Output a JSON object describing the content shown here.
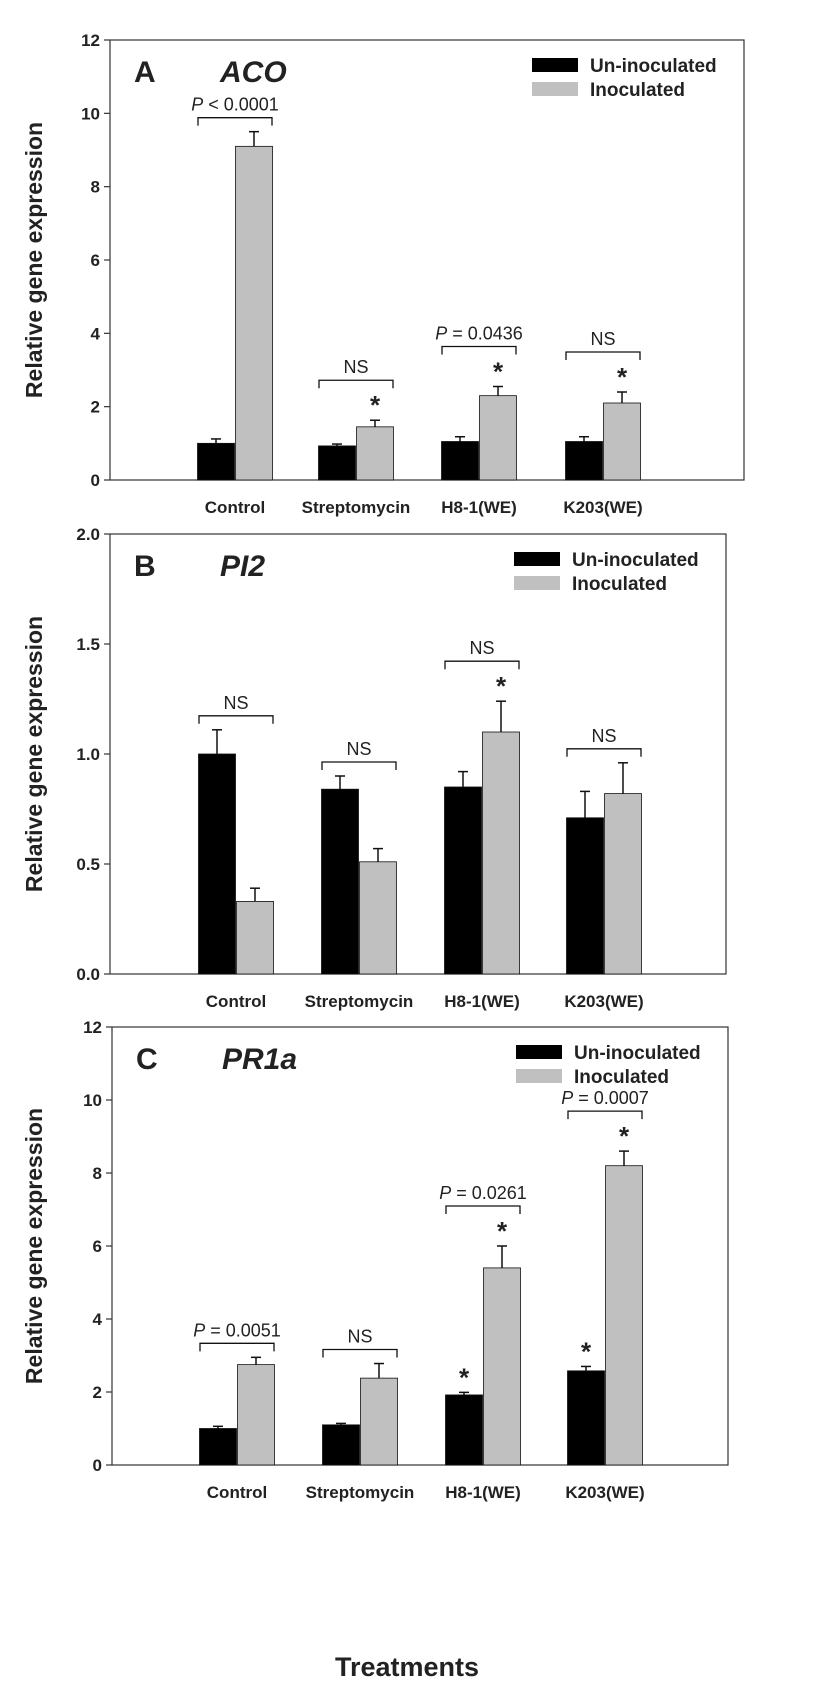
{
  "figure": {
    "xlabel": "Treatments"
  },
  "colors": {
    "uninoculated": "#000000",
    "inoculated": "#c0c0c0",
    "axis": "#333333"
  },
  "chart_data": [
    {
      "type": "bar",
      "panel_label": "A",
      "title": "ACO",
      "ylabel": "Relative gene expression",
      "ylim": [
        0,
        12
      ],
      "yticks": [
        "0",
        "2",
        "4",
        "6",
        "8",
        "10",
        "12"
      ],
      "categories": [
        "Control",
        "Streptomycin",
        "H8-1(WE)",
        "K203(WE)"
      ],
      "series": [
        {
          "name": "Un-inoculated",
          "values": [
            1.0,
            0.93,
            1.05,
            1.05
          ],
          "errors": [
            0.12,
            0.05,
            0.13,
            0.13
          ],
          "stars": [
            false,
            false,
            false,
            false
          ]
        },
        {
          "name": "Inoculated",
          "values": [
            9.1,
            1.45,
            2.3,
            2.1
          ],
          "errors": [
            0.4,
            0.18,
            0.25,
            0.3
          ],
          "stars": [
            false,
            true,
            true,
            true
          ]
        }
      ],
      "comparisons": [
        {
          "label_prefix": "P",
          "label": " < 0.0001"
        },
        {
          "label_prefix": "",
          "label": "NS"
        },
        {
          "label_prefix": "P",
          "label": " = 0.0436"
        },
        {
          "label_prefix": "",
          "label": "NS"
        }
      ],
      "legend_position": "top-right"
    },
    {
      "type": "bar",
      "panel_label": "B",
      "title": "PI2",
      "ylabel": "Relative gene expression",
      "ylim": [
        0,
        2
      ],
      "yticks": [
        "0.0",
        "0.5",
        "1.0",
        "1.5",
        "2.0"
      ],
      "categories": [
        "Control",
        "Streptomycin",
        "H8-1(WE)",
        "K203(WE)"
      ],
      "series": [
        {
          "name": "Un-inoculated",
          "values": [
            1.0,
            0.84,
            0.85,
            0.71
          ],
          "errors": [
            0.11,
            0.06,
            0.07,
            0.12
          ],
          "stars": [
            false,
            false,
            false,
            false
          ]
        },
        {
          "name": "Inoculated",
          "values": [
            0.33,
            0.51,
            1.1,
            0.82
          ],
          "errors": [
            0.06,
            0.06,
            0.14,
            0.14
          ],
          "stars": [
            false,
            false,
            true,
            false
          ]
        }
      ],
      "comparisons": [
        {
          "label_prefix": "",
          "label": "NS"
        },
        {
          "label_prefix": "",
          "label": "NS"
        },
        {
          "label_prefix": "",
          "label": "NS"
        },
        {
          "label_prefix": "",
          "label": "NS"
        }
      ],
      "legend_position": "top-right"
    },
    {
      "type": "bar",
      "panel_label": "C",
      "title": "PR1a",
      "ylabel": "Relative gene expression",
      "ylim": [
        0,
        12
      ],
      "yticks": [
        "0",
        "2",
        "4",
        "6",
        "8",
        "10",
        "12"
      ],
      "categories": [
        "Control",
        "Streptomycin",
        "H8-1(WE)",
        "K203(WE)"
      ],
      "series": [
        {
          "name": "Un-inoculated",
          "values": [
            1.0,
            1.1,
            1.92,
            2.58
          ],
          "errors": [
            0.06,
            0.04,
            0.07,
            0.12
          ],
          "stars": [
            false,
            false,
            true,
            true
          ]
        },
        {
          "name": "Inoculated",
          "values": [
            2.75,
            2.38,
            5.4,
            8.2
          ],
          "errors": [
            0.2,
            0.4,
            0.6,
            0.4
          ],
          "stars": [
            false,
            false,
            true,
            true
          ]
        }
      ],
      "comparisons": [
        {
          "label_prefix": "P",
          "label": " = 0.0051"
        },
        {
          "label_prefix": "",
          "label": "NS"
        },
        {
          "label_prefix": "P",
          "label": " = 0.0261"
        },
        {
          "label_prefix": "P",
          "label": " = 0.0007"
        }
      ],
      "legend_position": "top-right"
    }
  ]
}
